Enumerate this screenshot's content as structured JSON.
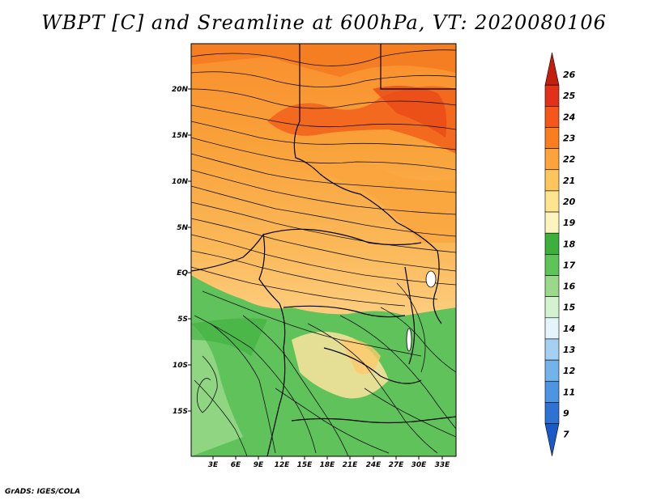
{
  "title": "WBPT [C] and Sreamline at 600hPa, VT: 2020080106",
  "footer": "GrADS: IGES/COLA",
  "map": {
    "lat_labels": [
      "20N",
      "15N",
      "10N",
      "5N",
      "EQ",
      "5S",
      "10S",
      "15S"
    ],
    "lon_labels": [
      "3E",
      "6E",
      "9E",
      "12E",
      "15E",
      "18E",
      "21E",
      "24E",
      "27E",
      "30E",
      "33E"
    ]
  },
  "colorbar": {
    "labels": [
      "26",
      "25",
      "24",
      "23",
      "22",
      "21",
      "20",
      "19",
      "18",
      "17",
      "16",
      "15",
      "14",
      "13",
      "12",
      "11",
      "9",
      "7"
    ],
    "colors": [
      "#c31f0e",
      "#e3301b",
      "#f5561b",
      "#fa7e1e",
      "#fda33b",
      "#fcc55e",
      "#fde490",
      "#fff4c0",
      "#3caf3c",
      "#5ec45a",
      "#9bd98a",
      "#d4f2cf",
      "#e5f4fa",
      "#a4d0f2",
      "#73b3ec",
      "#4d95e3",
      "#2f72d6",
      "#1b59c7"
    ]
  }
}
